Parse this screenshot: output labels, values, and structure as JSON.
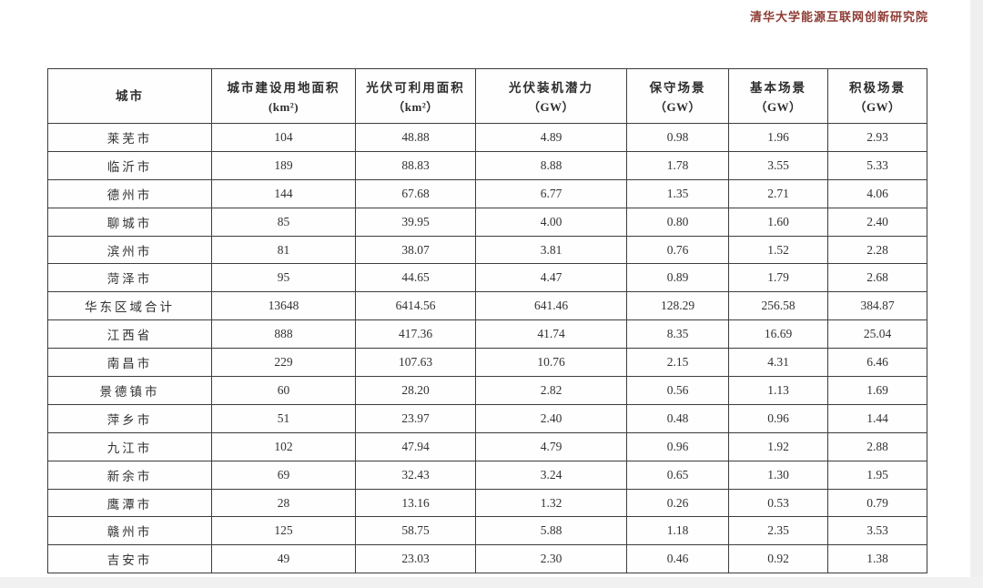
{
  "header": {
    "institute": "清华大学能源互联网创新研究院"
  },
  "colors": {
    "institute_text": "#8e3c34",
    "table_border": "#3d3d3d",
    "body_text": "#323232",
    "page_background": "#ffffff"
  },
  "table": {
    "columns": [
      {
        "title": "城市",
        "unit": ""
      },
      {
        "title": "城市建设用地面积",
        "unit": "(km²)"
      },
      {
        "title": "光伏可利用面积",
        "unit": "（km²）"
      },
      {
        "title": "光伏装机潜力",
        "unit": "（GW）"
      },
      {
        "title": "保守场景",
        "unit": "（GW）"
      },
      {
        "title": "基本场景",
        "unit": "（GW）"
      },
      {
        "title": "积极场景",
        "unit": "（GW）"
      }
    ],
    "rows": [
      {
        "city": "莱芜市",
        "values": [
          "104",
          "48.88",
          "4.89",
          "0.98",
          "1.96",
          "2.93"
        ]
      },
      {
        "city": "临沂市",
        "values": [
          "189",
          "88.83",
          "8.88",
          "1.78",
          "3.55",
          "5.33"
        ]
      },
      {
        "city": "德州市",
        "values": [
          "144",
          "67.68",
          "6.77",
          "1.35",
          "2.71",
          "4.06"
        ]
      },
      {
        "city": "聊城市",
        "values": [
          "85",
          "39.95",
          "4.00",
          "0.80",
          "1.60",
          "2.40"
        ]
      },
      {
        "city": "滨州市",
        "values": [
          "81",
          "38.07",
          "3.81",
          "0.76",
          "1.52",
          "2.28"
        ]
      },
      {
        "city": "菏泽市",
        "values": [
          "95",
          "44.65",
          "4.47",
          "0.89",
          "1.79",
          "2.68"
        ]
      },
      {
        "city": "华东区域合计",
        "values": [
          "13648",
          "6414.56",
          "641.46",
          "128.29",
          "256.58",
          "384.87"
        ]
      },
      {
        "city": "江西省",
        "values": [
          "888",
          "417.36",
          "41.74",
          "8.35",
          "16.69",
          "25.04"
        ]
      },
      {
        "city": "南昌市",
        "values": [
          "229",
          "107.63",
          "10.76",
          "2.15",
          "4.31",
          "6.46"
        ]
      },
      {
        "city": "景德镇市",
        "values": [
          "60",
          "28.20",
          "2.82",
          "0.56",
          "1.13",
          "1.69"
        ]
      },
      {
        "city": "萍乡市",
        "values": [
          "51",
          "23.97",
          "2.40",
          "0.48",
          "0.96",
          "1.44"
        ]
      },
      {
        "city": "九江市",
        "values": [
          "102",
          "47.94",
          "4.79",
          "0.96",
          "1.92",
          "2.88"
        ]
      },
      {
        "city": "新余市",
        "values": [
          "69",
          "32.43",
          "3.24",
          "0.65",
          "1.30",
          "1.95"
        ]
      },
      {
        "city": "鹰潭市",
        "values": [
          "28",
          "13.16",
          "1.32",
          "0.26",
          "0.53",
          "0.79"
        ]
      },
      {
        "city": "赣州市",
        "values": [
          "125",
          "58.75",
          "5.88",
          "1.18",
          "2.35",
          "3.53"
        ]
      },
      {
        "city": "吉安市",
        "values": [
          "49",
          "23.03",
          "2.30",
          "0.46",
          "0.92",
          "1.38"
        ]
      }
    ]
  }
}
